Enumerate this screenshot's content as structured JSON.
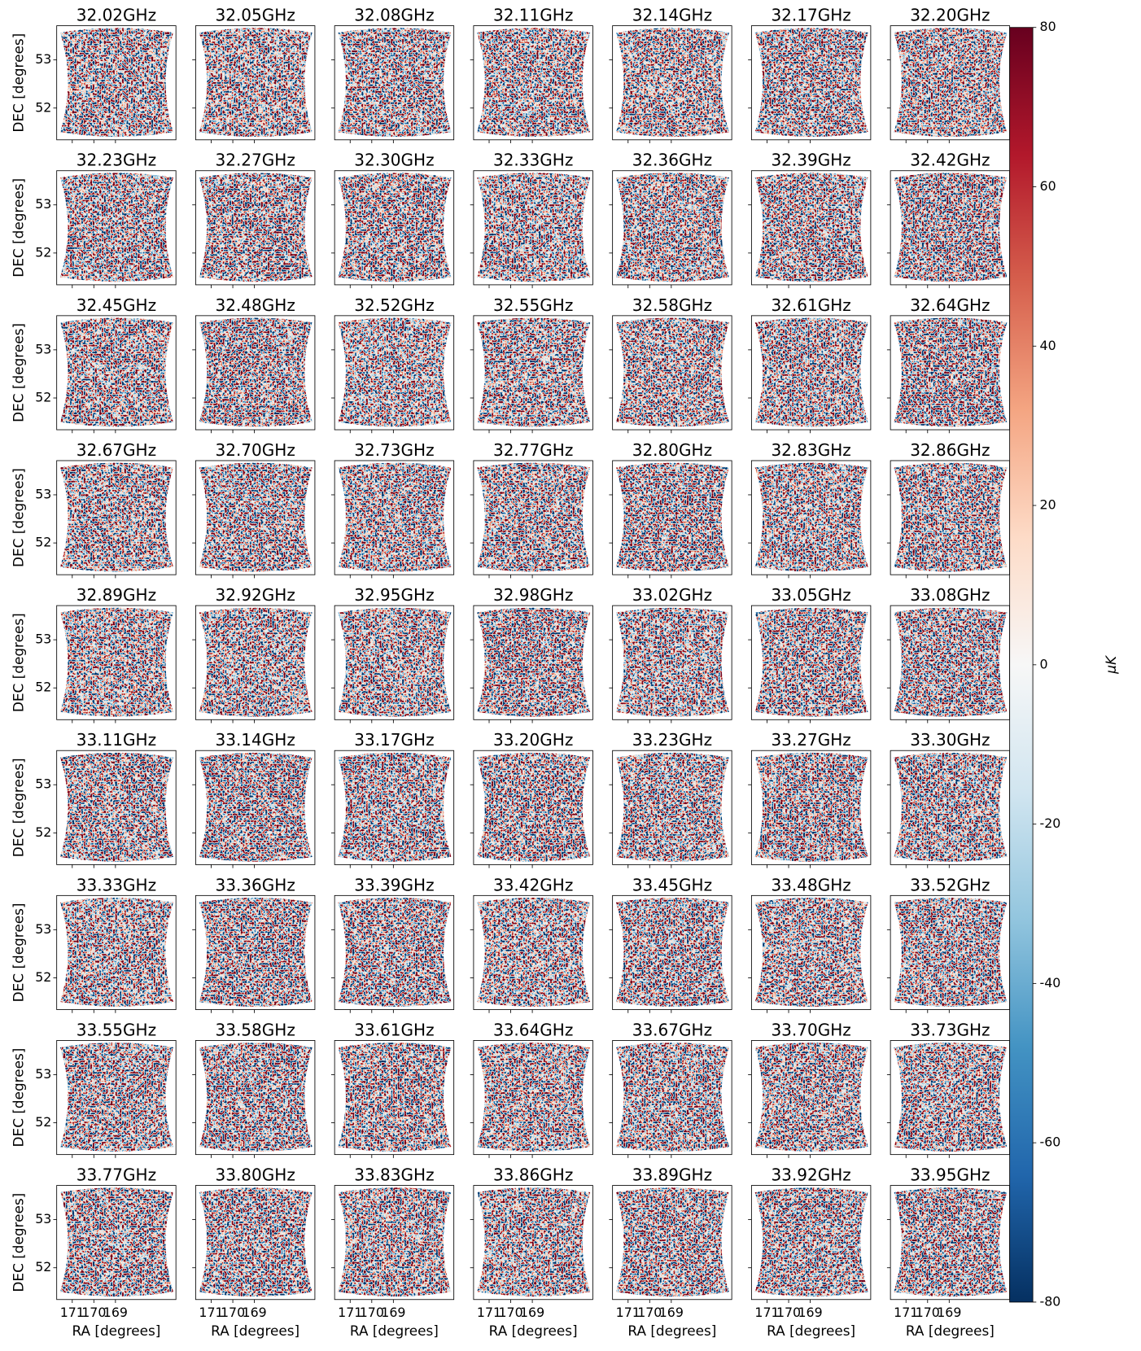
{
  "chart_data": {
    "type": "heatmap",
    "titles": [
      "32.02GHz",
      "32.05GHz",
      "32.08GHz",
      "32.11GHz",
      "32.14GHz",
      "32.17GHz",
      "32.20GHz",
      "32.23GHz",
      "32.27GHz",
      "32.30GHz",
      "32.33GHz",
      "32.36GHz",
      "32.39GHz",
      "32.42GHz",
      "32.45GHz",
      "32.48GHz",
      "32.52GHz",
      "32.55GHz",
      "32.58GHz",
      "32.61GHz",
      "32.64GHz",
      "32.67GHz",
      "32.70GHz",
      "32.73GHz",
      "32.77GHz",
      "32.80GHz",
      "32.83GHz",
      "32.86GHz",
      "32.89GHz",
      "32.92GHz",
      "32.95GHz",
      "32.98GHz",
      "33.02GHz",
      "33.05GHz",
      "33.08GHz",
      "33.11GHz",
      "33.14GHz",
      "33.17GHz",
      "33.20GHz",
      "33.23GHz",
      "33.27GHz",
      "33.30GHz",
      "33.33GHz",
      "33.36GHz",
      "33.39GHz",
      "33.42GHz",
      "33.45GHz",
      "33.48GHz",
      "33.52GHz",
      "33.55GHz",
      "33.58GHz",
      "33.61GHz",
      "33.64GHz",
      "33.67GHz",
      "33.70GHz",
      "33.73GHz",
      "33.77GHz",
      "33.80GHz",
      "33.83GHz",
      "33.86GHz",
      "33.89GHz",
      "33.92GHz",
      "33.95GHz"
    ],
    "xlabel": "RA [degrees]",
    "ylabel": "DEC [degrees]",
    "xlim": [
      171.72,
      166.2
    ],
    "xticks": [
      171,
      170,
      169
    ],
    "ylim": [
      51.34,
      53.71
    ],
    "yticks": [
      52,
      53
    ],
    "colorbar_label": "μK",
    "clim": [
      -80,
      80
    ],
    "cticks": [
      -80,
      -60,
      -40,
      -20,
      0,
      20,
      40,
      60,
      80
    ],
    "colormap": [
      "#053061",
      "#2166ac",
      "#4393c3",
      "#92c5de",
      "#d1e5f0",
      "#f7f7f7",
      "#fddbc7",
      "#f4a582",
      "#d6604d",
      "#b2182b",
      "#67001f"
    ]
  }
}
